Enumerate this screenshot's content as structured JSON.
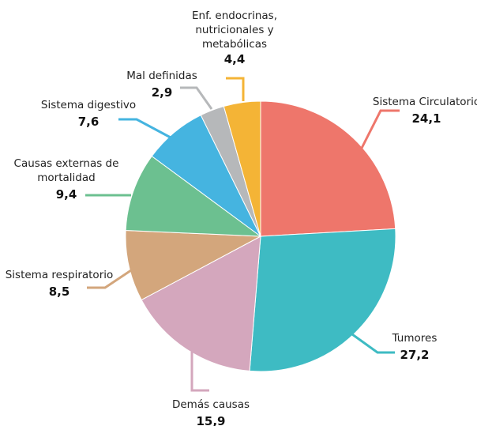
{
  "chart_data": {
    "type": "pie",
    "title": "",
    "series": [
      {
        "label": [
          "Sistema Circulatorio"
        ],
        "value": 24.1,
        "display": "24,1",
        "color": "#EE766B"
      },
      {
        "label": [
          "Tumores"
        ],
        "value": 27.2,
        "display": "27,2",
        "color": "#3EBBC3"
      },
      {
        "label": [
          "Demás causas"
        ],
        "value": 15.9,
        "display": "15,9",
        "color": "#D4A7BD"
      },
      {
        "label": [
          "Sistema respiratorio"
        ],
        "value": 8.5,
        "display": "8,5",
        "color": "#D3A67C"
      },
      {
        "label": [
          "Causas externas de",
          "mortalidad"
        ],
        "value": 9.4,
        "display": "9,4",
        "color": "#6CC090"
      },
      {
        "label": [
          "Sistema digestivo"
        ],
        "value": 7.6,
        "display": "7,6",
        "color": "#45B4E0"
      },
      {
        "label": [
          "Mal definidas"
        ],
        "value": 2.9,
        "display": "2,9",
        "color": "#B6B8BA"
      },
      {
        "label": [
          "Enf. endocrinas,",
          "nutricionales y",
          "metabólicas"
        ],
        "value": 4.4,
        "display": "4,4",
        "color": "#F4B436"
      }
    ]
  }
}
